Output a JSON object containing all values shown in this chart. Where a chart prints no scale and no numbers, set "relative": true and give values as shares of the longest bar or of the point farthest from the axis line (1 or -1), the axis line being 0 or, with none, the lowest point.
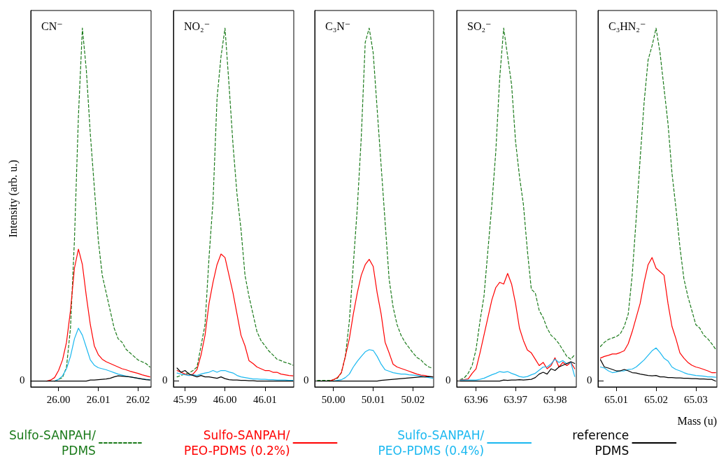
{
  "chart_data": [
    {
      "type": "line",
      "title": "CN⁻",
      "ylabel": "Intensity (arb. u.)",
      "relative": true,
      "legend": "bottom",
      "annotations": [
        "0"
      ],
      "xlim": [
        25.993,
        26.0233
      ],
      "xticks": [
        {
          "value": 26,
          "label": "26.00"
        },
        26.01,
        26.02
      ],
      "x": [
        25.993,
        25.994,
        25.995,
        25.996,
        25.997,
        25.998,
        25.999,
        26.0,
        26.001,
        26.002,
        26.003,
        26.004,
        26.005,
        26.006,
        26.007,
        26.008,
        26.009,
        26.01,
        26.011,
        26.012,
        26.013,
        26.014,
        26.015,
        26.016,
        26.017,
        26.018,
        26.019,
        26.02,
        26.021,
        26.022,
        26.023
      ],
      "series": [
        {
          "name": "Sulfo-SANPAH/\nPDMS",
          "color": "#1a7a1a",
          "line_style": "dashed",
          "values": [
            null,
            null,
            null,
            null,
            null,
            null,
            0,
            0.005,
            0.01,
            0.04,
            0.15,
            0.4,
            0.75,
            1,
            0.88,
            0.7,
            0.55,
            0.4,
            0.3,
            0.25,
            0.2,
            0.15,
            0.12,
            0.11,
            0.09,
            0.08,
            0.07,
            0.06,
            0.055,
            0.05,
            0.04
          ]
        },
        {
          "name": "Sulfo-SANPAH/\nPEO-PDMS (0.2%)",
          "color": "#ff0000",
          "values": [
            null,
            null,
            null,
            null,
            0,
            0.003,
            0.01,
            0.03,
            0.06,
            0.11,
            0.2,
            0.32,
            0.374,
            0.33,
            0.24,
            0.16,
            0.1,
            0.075,
            0.062,
            0.055,
            0.05,
            0.045,
            0.04,
            0.035,
            0.032,
            0.028,
            0.025,
            0.022,
            0.018,
            0.015,
            0.012
          ]
        },
        {
          "name": "Sulfo-SANPAH/\nPEO-PDMS (0.4%)",
          "color": "#1ab8f0",
          "values": [
            null,
            null,
            null,
            null,
            null,
            null,
            0,
            0.005,
            0.015,
            0.035,
            0.07,
            0.12,
            0.15,
            0.13,
            0.095,
            0.06,
            0.045,
            0.038,
            0.035,
            0.032,
            0.028,
            0.024,
            0.02,
            0.017,
            0.014,
            0.012,
            0.01,
            0.008,
            0.006,
            0.005,
            0.004
          ]
        },
        {
          "name": "reference\nPDMS",
          "color": "#000000",
          "values": [
            0,
            0,
            0,
            0,
            0,
            0,
            0,
            0,
            0,
            0,
            0,
            0,
            0,
            0,
            0,
            0.003,
            0.003,
            0.004,
            0.005,
            0.006,
            0.008,
            0.012,
            0.015,
            0.014,
            0.013,
            0.012,
            0.01,
            0.008,
            0.006,
            0.004,
            0.003
          ]
        }
      ]
    },
    {
      "type": "line",
      "title": "NO₂⁻",
      "relative": true,
      "annotations": [
        "0"
      ],
      "xlim": [
        45.9871,
        46.0172
      ],
      "xticks": [
        45.99,
        {
          "value": 46,
          "label": "46.00"
        },
        46.01
      ],
      "x": [
        45.988,
        45.989,
        45.99,
        45.991,
        45.992,
        45.993,
        45.994,
        45.995,
        45.996,
        45.997,
        45.998,
        45.999,
        46.0,
        46.001,
        46.002,
        46.003,
        46.004,
        46.005,
        46.006,
        46.007,
        46.008,
        46.009,
        46.01,
        46.011,
        46.012,
        46.013,
        46.014,
        46.015,
        46.016,
        46.017
      ],
      "series": [
        {
          "color": "#1a7a1a",
          "line_style": "dashed",
          "values": [
            0.012,
            0.016,
            0.02,
            0.023,
            0.03,
            0.04,
            0.1,
            0.16,
            0.35,
            0.51,
            0.8,
            0.92,
            1,
            0.84,
            0.67,
            0.53,
            0.43,
            0.3,
            0.24,
            0.19,
            0.14,
            0.115,
            0.1,
            0.085,
            0.074,
            0.062,
            0.058,
            0.053,
            0.05,
            0.045
          ]
        },
        {
          "color": "#ff0000",
          "values": [
            0.03,
            0.025,
            0.02,
            0.016,
            0.02,
            0.033,
            0.074,
            0.13,
            0.22,
            0.28,
            0.33,
            0.36,
            0.35,
            0.3,
            0.25,
            0.19,
            0.13,
            0.1,
            0.058,
            0.05,
            0.04,
            0.035,
            0.03,
            0.03,
            0.025,
            0.025,
            0.02,
            0.018,
            0.016,
            0.015
          ]
        },
        {
          "color": "#1ab8f0",
          "values": [
            0.023,
            0.02,
            0.018,
            0.016,
            0.018,
            0.016,
            0.02,
            0.023,
            0.025,
            0.03,
            0.025,
            0.03,
            0.03,
            0.026,
            0.023,
            0.016,
            0.012,
            0.01,
            0.008,
            0.006,
            0.006,
            0.005,
            0.005,
            0.004,
            0.004,
            0.003,
            0.003,
            0.003,
            0.002,
            0.002
          ]
        },
        {
          "color": "#000000",
          "values": [
            0.037,
            0.025,
            0.03,
            0.02,
            0.016,
            0.012,
            0.016,
            0.012,
            0.012,
            0.01,
            0.008,
            0.012,
            0.007,
            0.004,
            0.003,
            0.003,
            0.002,
            0.002,
            0.001,
            0.001,
            0,
            0,
            0,
            0,
            0,
            0,
            0,
            0,
            0,
            0
          ]
        }
      ]
    },
    {
      "type": "line",
      "title": "C₃N⁻",
      "relative": true,
      "annotations": [
        "0"
      ],
      "xlim": [
        49.9953,
        50.0252
      ],
      "xticks": [
        {
          "value": 50,
          "label": "50.00"
        },
        50.01,
        50.02
      ],
      "x": [
        49.996,
        49.997,
        49.998,
        49.999,
        50.0,
        50.001,
        50.002,
        50.003,
        50.004,
        50.005,
        50.006,
        50.007,
        50.008,
        50.009,
        50.01,
        50.011,
        50.012,
        50.013,
        50.014,
        50.015,
        50.016,
        50.017,
        50.018,
        50.019,
        50.02,
        50.021,
        50.022,
        50.023,
        50.024,
        50.025
      ],
      "series": [
        {
          "color": "#1a7a1a",
          "line_style": "dashed",
          "values": [
            0.002,
            0.002,
            0.002,
            0.002,
            0.004,
            0.008,
            0.024,
            0.07,
            0.17,
            0.33,
            0.49,
            0.69,
            0.96,
            1,
            0.93,
            0.77,
            0.61,
            0.45,
            0.29,
            0.21,
            0.16,
            0.13,
            0.11,
            0.095,
            0.08,
            0.067,
            0.06,
            0.048,
            0.04,
            0.036
          ]
        },
        {
          "color": "#ff0000",
          "values": [
            null,
            null,
            null,
            0,
            0.004,
            0.01,
            0.024,
            0.07,
            0.12,
            0.19,
            0.25,
            0.3,
            0.33,
            0.345,
            0.325,
            0.25,
            0.19,
            0.11,
            0.08,
            0.048,
            0.04,
            0.036,
            0.032,
            0.028,
            0.024,
            0.02,
            0.017,
            0.016,
            0.013,
            0.012
          ]
        },
        {
          "color": "#1ab8f0",
          "values": [
            null,
            null,
            null,
            null,
            0,
            0.002,
            0.004,
            0.01,
            0.02,
            0.04,
            0.056,
            0.07,
            0.083,
            0.089,
            0.087,
            0.07,
            0.048,
            0.032,
            0.028,
            0.024,
            0.022,
            0.02,
            0.02,
            0.018,
            0.017,
            0.016,
            0.014,
            0.012,
            0.01,
            0.008
          ]
        },
        {
          "color": "#000000",
          "values": [
            0,
            0,
            0,
            0,
            0,
            0,
            0,
            0,
            0,
            0,
            0,
            0,
            0,
            0,
            0,
            0,
            0.002,
            0.003,
            0.004,
            0.005,
            0.006,
            0.007,
            0.008,
            0.009,
            0.01,
            0.011,
            0.012,
            0.012,
            0.013,
            0.012
          ]
        }
      ]
    },
    {
      "type": "line",
      "title": "SO₂⁻",
      "relative": true,
      "annotations": [
        "0"
      ],
      "xlim": [
        63.9551,
        63.9854
      ],
      "xticks": [
        63.96,
        63.97,
        63.98
      ],
      "x": [
        63.956,
        63.957,
        63.958,
        63.959,
        63.96,
        63.961,
        63.962,
        63.963,
        63.964,
        63.965,
        63.966,
        63.967,
        63.968,
        63.969,
        63.97,
        63.971,
        63.972,
        63.973,
        63.974,
        63.975,
        63.976,
        63.977,
        63.978,
        63.979,
        63.98,
        63.981,
        63.982,
        63.983,
        63.984,
        63.985
      ],
      "series": [
        {
          "color": "#1a7a1a",
          "line_style": "dashed",
          "values": [
            0.004,
            0.009,
            0.022,
            0.044,
            0.09,
            0.17,
            0.24,
            0.37,
            0.5,
            0.65,
            0.86,
            1,
            0.92,
            0.84,
            0.68,
            0.58,
            0.5,
            0.37,
            0.26,
            0.25,
            0.2,
            0.18,
            0.15,
            0.13,
            0.12,
            0.106,
            0.088,
            0.07,
            0.062,
            0.075
          ]
        },
        {
          "color": "#ff0000",
          "values": [
            0.004,
            0.004,
            0.006,
            0.022,
            0.035,
            0.08,
            0.13,
            0.18,
            0.23,
            0.265,
            0.28,
            0.275,
            0.305,
            0.275,
            0.22,
            0.15,
            0.115,
            0.088,
            0.08,
            0.062,
            0.044,
            0.053,
            0.035,
            0.044,
            0.066,
            0.04,
            0.053,
            0.044,
            0.053,
            0.035
          ]
        },
        {
          "color": "#1ab8f0",
          "values": [
            0.003,
            0.003,
            0.003,
            0.003,
            0.003,
            0.005,
            0.008,
            0.013,
            0.018,
            0.022,
            0.027,
            0.025,
            0.027,
            0.022,
            0.018,
            0.013,
            0.011,
            0.013,
            0.018,
            0.022,
            0.031,
            0.04,
            0.04,
            0.049,
            0.062,
            0.053,
            0.058,
            0.049,
            0.053,
            0.013
          ]
        },
        {
          "color": "#000000",
          "values": [
            0,
            0,
            0,
            0,
            0,
            0,
            0,
            0,
            0,
            0,
            0,
            0.003,
            0.002,
            0.003,
            0.003,
            0.004,
            0.003,
            0.004,
            0.005,
            0.01,
            0.02,
            0.025,
            0.02,
            0.035,
            0.03,
            0.04,
            0.045,
            0.05,
            0.055,
            0.05
          ]
        }
      ]
    },
    {
      "type": "line",
      "title": "C₃HN₂⁻",
      "xlabel": "Mass (u)",
      "relative": true,
      "annotations": [
        "0"
      ],
      "xlim": [
        65.0054,
        65.0353
      ],
      "xticks": [
        65.01,
        65.02,
        65.03
      ],
      "x": [
        65.006,
        65.007,
        65.008,
        65.009,
        65.01,
        65.011,
        65.012,
        65.013,
        65.014,
        65.015,
        65.016,
        65.017,
        65.018,
        65.019,
        65.02,
        65.021,
        65.022,
        65.023,
        65.024,
        65.025,
        65.026,
        65.027,
        65.028,
        65.029,
        65.03,
        65.031,
        65.032,
        65.033,
        65.034,
        65.035
      ],
      "series": [
        {
          "color": "#1a7a1a",
          "line_style": "dashed",
          "values": [
            0.098,
            0.11,
            0.118,
            0.122,
            0.126,
            0.134,
            0.155,
            0.19,
            0.3,
            0.46,
            0.63,
            0.79,
            0.91,
            0.95,
            1,
            0.93,
            0.83,
            0.73,
            0.59,
            0.49,
            0.38,
            0.29,
            0.24,
            0.2,
            0.16,
            0.15,
            0.13,
            0.12,
            0.106,
            0.09
          ]
        },
        {
          "color": "#ff0000",
          "values": [
            0.065,
            0.07,
            0.073,
            0.077,
            0.077,
            0.081,
            0.086,
            0.106,
            0.14,
            0.18,
            0.22,
            0.28,
            0.33,
            0.35,
            0.32,
            0.31,
            0.3,
            0.22,
            0.155,
            0.12,
            0.08,
            0.065,
            0.053,
            0.045,
            0.04,
            0.037,
            0.033,
            0.029,
            0.024,
            0.024
          ]
        },
        {
          "color": "#1ab8f0",
          "values": [
            0.04,
            0.037,
            0.029,
            0.024,
            0.026,
            0.029,
            0.029,
            0.033,
            0.034,
            0.04,
            0.05,
            0.06,
            0.073,
            0.086,
            0.094,
            0.081,
            0.065,
            0.057,
            0.04,
            0.033,
            0.029,
            0.024,
            0.02,
            0.018,
            0.016,
            0.015,
            0.014,
            0.012,
            0.012,
            0.011
          ]
        },
        {
          "color": "#000000",
          "values": [
            0.061,
            0.04,
            0.037,
            0.033,
            0.029,
            0.029,
            0.033,
            0.029,
            0.024,
            0.023,
            0.02,
            0.018,
            0.016,
            0.015,
            0.016,
            0.012,
            0.012,
            0.01,
            0.01,
            0.009,
            0.009,
            0.008,
            0.008,
            0.007,
            0.007,
            0.006,
            0.006,
            0.005,
            0.005,
            0
          ]
        }
      ]
    }
  ]
}
